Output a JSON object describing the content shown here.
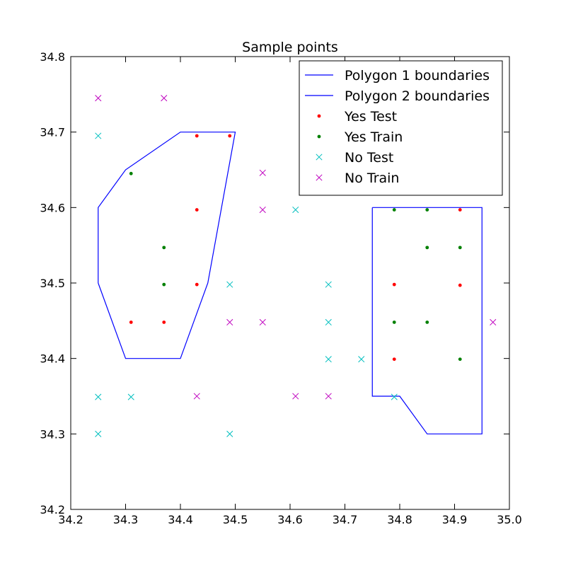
{
  "chart_data": {
    "type": "scatter",
    "title": "Sample points",
    "xlabel": "",
    "ylabel": "",
    "xlim": [
      34.2,
      35.0
    ],
    "ylim": [
      34.2,
      34.8
    ],
    "grid": false,
    "legend_position": "top-right",
    "x_ticks": [
      "34.2",
      "34.3",
      "34.4",
      "34.5",
      "34.6",
      "34.7",
      "34.8",
      "34.9",
      "35.0"
    ],
    "y_ticks": [
      "34.2",
      "34.3",
      "34.4",
      "34.5",
      "34.6",
      "34.7",
      "34.8"
    ],
    "series": [
      {
        "name": "Polygon 1 boundaries",
        "kind": "line",
        "color": "#0000ff",
        "points": [
          [
            34.25,
            34.5
          ],
          [
            34.25,
            34.6
          ],
          [
            34.3,
            34.65
          ],
          [
            34.4,
            34.7
          ],
          [
            34.5,
            34.7
          ],
          [
            34.45,
            34.5
          ],
          [
            34.4,
            34.4
          ],
          [
            34.3,
            34.4
          ],
          [
            34.25,
            34.5
          ]
        ]
      },
      {
        "name": "Polygon 2 boundaries",
        "kind": "line",
        "color": "#0000ff",
        "points": [
          [
            34.75,
            34.6
          ],
          [
            34.95,
            34.6
          ],
          [
            34.95,
            34.3
          ],
          [
            34.85,
            34.3
          ],
          [
            34.8,
            34.35
          ],
          [
            34.75,
            34.35
          ],
          [
            34.75,
            34.6
          ]
        ]
      },
      {
        "name": "Yes Test",
        "kind": "dot",
        "color": "#ff0000",
        "points": [
          [
            34.43,
            34.695
          ],
          [
            34.49,
            34.695
          ],
          [
            34.43,
            34.597
          ],
          [
            34.43,
            34.498
          ],
          [
            34.31,
            34.448
          ],
          [
            34.37,
            34.448
          ],
          [
            34.79,
            34.498
          ],
          [
            34.79,
            34.399
          ],
          [
            34.91,
            34.597
          ],
          [
            34.91,
            34.497
          ]
        ]
      },
      {
        "name": "Yes Train",
        "kind": "dot",
        "color": "#008000",
        "points": [
          [
            34.31,
            34.645
          ],
          [
            34.37,
            34.547
          ],
          [
            34.37,
            34.498
          ],
          [
            34.79,
            34.597
          ],
          [
            34.85,
            34.597
          ],
          [
            34.85,
            34.547
          ],
          [
            34.91,
            34.547
          ],
          [
            34.79,
            34.448
          ],
          [
            34.85,
            34.448
          ],
          [
            34.91,
            34.399
          ]
        ]
      },
      {
        "name": "No Test",
        "kind": "cross",
        "color": "#00bfbf",
        "points": [
          [
            34.25,
            34.695
          ],
          [
            34.61,
            34.597
          ],
          [
            34.49,
            34.498
          ],
          [
            34.67,
            34.498
          ],
          [
            34.67,
            34.448
          ],
          [
            34.67,
            34.399
          ],
          [
            34.73,
            34.399
          ],
          [
            34.25,
            34.349
          ],
          [
            34.31,
            34.349
          ],
          [
            34.79,
            34.349
          ],
          [
            34.25,
            34.3
          ],
          [
            34.49,
            34.3
          ]
        ]
      },
      {
        "name": "No Train",
        "kind": "cross",
        "color": "#bf00bf",
        "points": [
          [
            34.25,
            34.745
          ],
          [
            34.37,
            34.745
          ],
          [
            34.55,
            34.646
          ],
          [
            34.55,
            34.597
          ],
          [
            34.49,
            34.448
          ],
          [
            34.55,
            34.448
          ],
          [
            34.97,
            34.448
          ],
          [
            34.43,
            34.35
          ],
          [
            34.61,
            34.35
          ],
          [
            34.67,
            34.35
          ]
        ]
      }
    ]
  }
}
